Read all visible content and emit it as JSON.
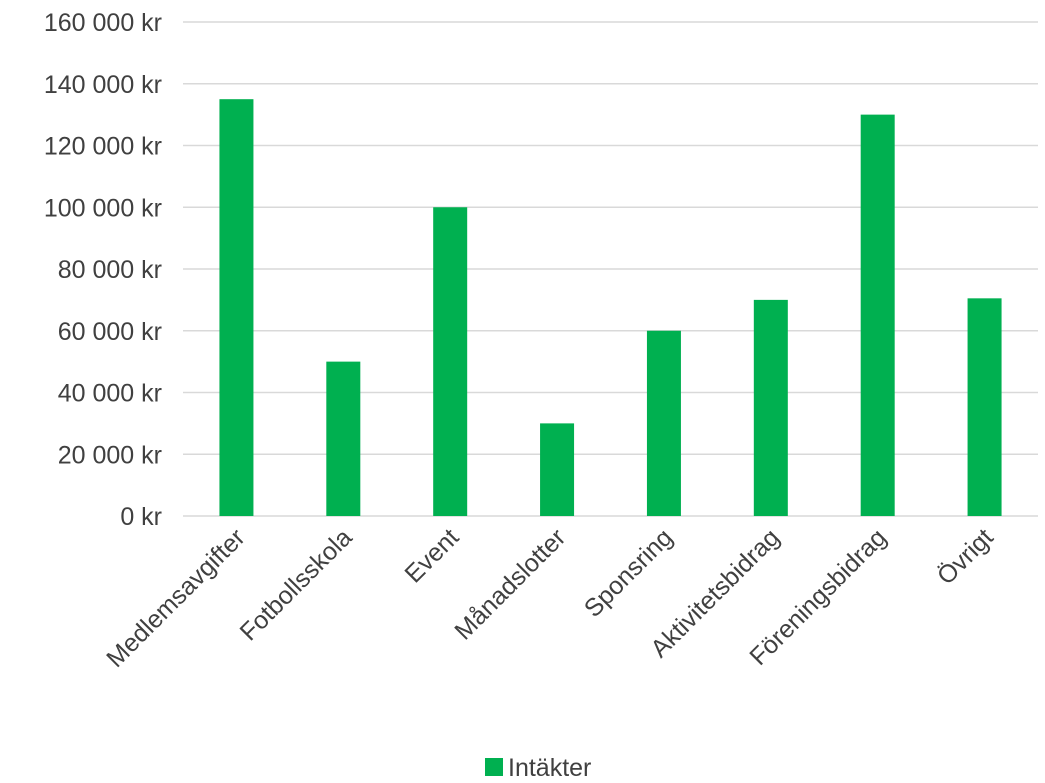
{
  "chart_data": {
    "type": "bar",
    "categories": [
      "Medlemsavgifter",
      "Fotbollsskola",
      "Event",
      "Månadslotter",
      "Sponsring",
      "Aktivitetsbidrag",
      "Föreningsbidrag",
      "Övrigt"
    ],
    "series": [
      {
        "name": "Intäkter",
        "values": [
          135000,
          50000,
          100000,
          30000,
          60000,
          70000,
          130000,
          70500
        ],
        "color": "#00b050"
      }
    ],
    "ylim": [
      0,
      160000
    ],
    "yticks": [
      0,
      20000,
      40000,
      60000,
      80000,
      100000,
      120000,
      140000,
      160000
    ],
    "ytick_labels": [
      "0 kr",
      "20 000 kr",
      "40 000 kr",
      "60 000 kr",
      "80 000 kr",
      "100 000 kr",
      "120 000 kr",
      "140 000 kr",
      "160 000 kr"
    ],
    "title": "",
    "xlabel": "",
    "ylabel": "",
    "grid": true,
    "legend_position": "bottom",
    "gridline_color": "#d9d9d9",
    "text_color": "#404040"
  }
}
